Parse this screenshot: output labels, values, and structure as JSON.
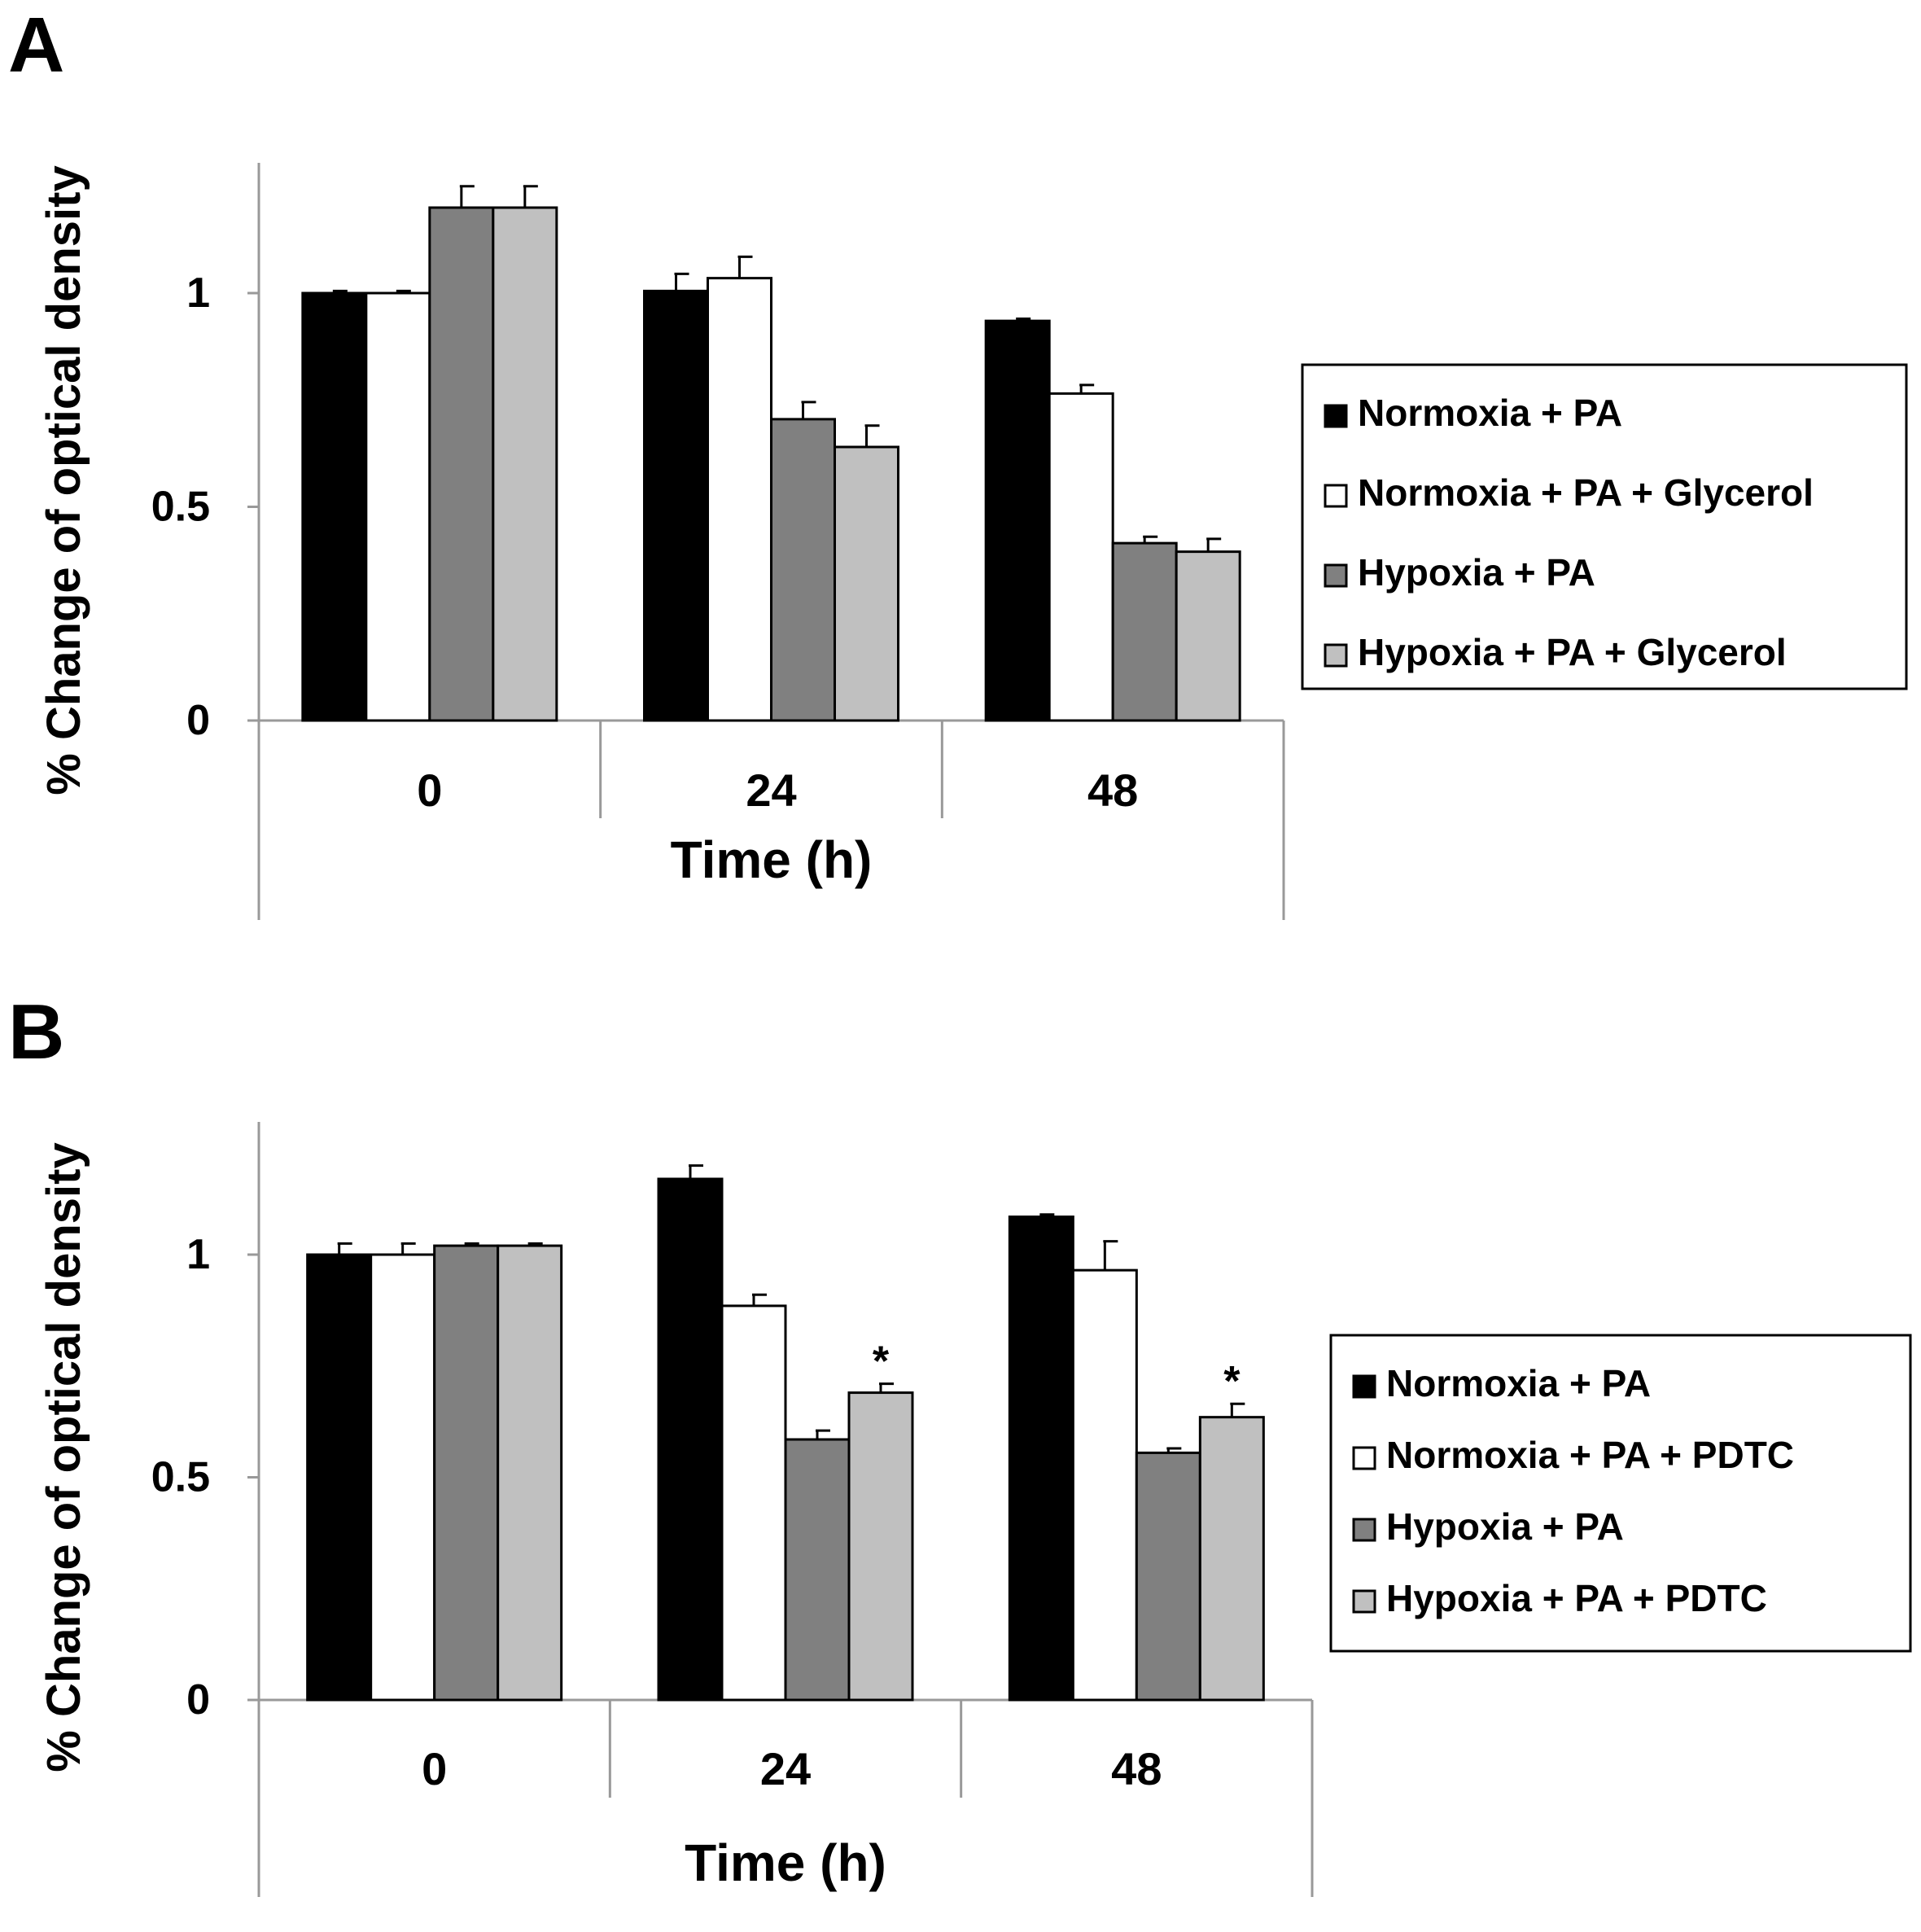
{
  "chart_data": [
    {
      "panel_label": "A",
      "type": "bar",
      "title": "",
      "xlabel": "Time (h)",
      "ylabel": "% Change of optical density",
      "categories": [
        "0",
        "24",
        "48"
      ],
      "ylim": [
        0,
        1.3
      ],
      "yticks": [
        "0",
        "0.5",
        "1"
      ],
      "grid": false,
      "legend_position": "right",
      "series": [
        {
          "name": "Normoxia + PA",
          "color": "#000000",
          "values": [
            1.0,
            1.005,
            0.935
          ],
          "errors": [
            0.005,
            0.04,
            0.005
          ],
          "stars": [
            false,
            false,
            false
          ]
        },
        {
          "name": "Normoxia + PA + Glycerol",
          "color": "#ffffff",
          "values": [
            1.0,
            1.035,
            0.765
          ],
          "errors": [
            0.005,
            0.05,
            0.02
          ],
          "stars": [
            false,
            false,
            false
          ]
        },
        {
          "name": "Hypoxia + PA",
          "color": "#808080",
          "values": [
            1.2,
            0.705,
            0.415
          ],
          "errors": [
            0.05,
            0.04,
            0.015
          ],
          "stars": [
            false,
            false,
            false
          ]
        },
        {
          "name": "Hypoxia + PA + Glycerol",
          "color": "#c0c0c0",
          "values": [
            1.2,
            0.64,
            0.395
          ],
          "errors": [
            0.05,
            0.05,
            0.03
          ],
          "stars": [
            false,
            false,
            false
          ]
        }
      ]
    },
    {
      "panel_label": "B",
      "type": "bar",
      "title": "",
      "xlabel": "Time (h)",
      "ylabel": "% Change of optical density",
      "categories": [
        "0",
        "24",
        "48"
      ],
      "ylim": [
        0,
        1.3
      ],
      "yticks": [
        "0",
        "0.5",
        "1"
      ],
      "grid": false,
      "legend_position": "right",
      "series": [
        {
          "name": "Normoxia + PA",
          "color": "#000000",
          "values": [
            1.0,
            1.17,
            1.085
          ],
          "errors": [
            0.025,
            0.03,
            0.005
          ],
          "stars": [
            false,
            false,
            false
          ]
        },
        {
          "name": "Normoxia + PA + PDTC",
          "color": "#ffffff",
          "values": [
            1.0,
            0.885,
            0.965
          ],
          "errors": [
            0.025,
            0.025,
            0.065
          ],
          "stars": [
            false,
            false,
            false
          ]
        },
        {
          "name": "Hypoxia + PA",
          "color": "#808080",
          "values": [
            1.02,
            0.585,
            0.555
          ],
          "errors": [
            0.005,
            0.02,
            0.01
          ],
          "stars": [
            false,
            false,
            false
          ]
        },
        {
          "name": "Hypoxia + PA + PDTC",
          "color": "#c0c0c0",
          "values": [
            1.02,
            0.69,
            0.635
          ],
          "errors": [
            0.005,
            0.02,
            0.03
          ],
          "stars": [
            false,
            true,
            true
          ]
        }
      ],
      "annotation_mark": "*"
    }
  ]
}
